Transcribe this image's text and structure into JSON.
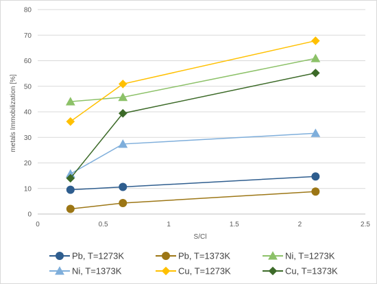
{
  "chart_data": {
    "type": "line",
    "title": "",
    "xlabel": "S/Cl",
    "ylabel": "metals Immobilization [%]",
    "xlim": [
      0,
      2.5
    ],
    "ylim": [
      0,
      80
    ],
    "xticks": [
      "0",
      "0.5",
      "1",
      "1.5",
      "2",
      "2.5"
    ],
    "yticks": [
      "0",
      "10",
      "20",
      "30",
      "40",
      "50",
      "60",
      "70",
      "80"
    ],
    "grid": "horizontal",
    "legend_position": "bottom",
    "series": [
      {
        "name": "Pb, T=1273K",
        "marker": "circle",
        "color": "#2e5d8e",
        "points": [
          [
            0.25,
            9.5
          ],
          [
            0.65,
            10.6
          ],
          [
            2.12,
            14.7
          ]
        ]
      },
      {
        "name": "Pb, T=1373K",
        "marker": "circle",
        "color": "#9c7615",
        "points": [
          [
            0.25,
            2.0
          ],
          [
            0.65,
            4.3
          ],
          [
            2.12,
            8.8
          ]
        ]
      },
      {
        "name": "Ni, T=1273K",
        "marker": "triangle",
        "color": "#8cc168",
        "points": [
          [
            0.25,
            44.0
          ],
          [
            0.65,
            45.7
          ],
          [
            2.12,
            60.9
          ]
        ]
      },
      {
        "name": "Ni, T=1373K",
        "marker": "triangle",
        "color": "#7eaedb",
        "points": [
          [
            0.25,
            15.7
          ],
          [
            0.65,
            27.4
          ],
          [
            2.12,
            31.6
          ]
        ]
      },
      {
        "name": "Cu, T=1273K",
        "marker": "diamond",
        "color": "#ffc000",
        "points": [
          [
            0.25,
            36.2
          ],
          [
            0.65,
            50.9
          ],
          [
            2.12,
            67.8
          ]
        ]
      },
      {
        "name": "Cu, T=1373K",
        "marker": "diamond",
        "color": "#3c6a28",
        "points": [
          [
            0.25,
            14.0
          ],
          [
            0.65,
            39.4
          ],
          [
            2.12,
            55.2
          ]
        ]
      }
    ]
  }
}
